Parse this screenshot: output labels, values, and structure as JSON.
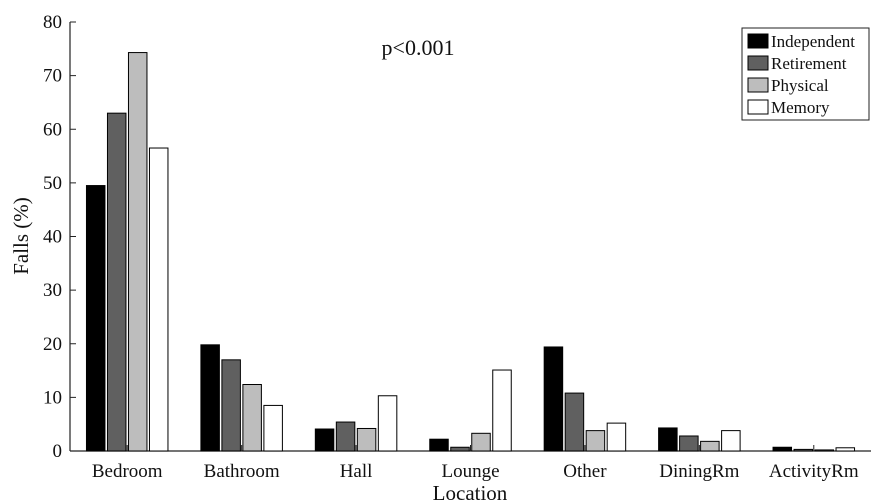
{
  "chart_data": {
    "type": "bar",
    "title": "",
    "xlabel": "Location",
    "ylabel": "Falls (%)",
    "annotation": "p<0.001",
    "ylim": [
      0,
      80
    ],
    "yticks": [
      0,
      10,
      20,
      30,
      40,
      50,
      60,
      70,
      80
    ],
    "grid": false,
    "legend_position": "top-right",
    "categories": [
      "Bedroom",
      "Bathroom",
      "Hall",
      "Lounge",
      "Other",
      "DiningRm",
      "ActivityRm"
    ],
    "series": [
      {
        "name": "Independent",
        "color": "#000000",
        "values": [
          49.5,
          19.8,
          4.1,
          2.2,
          19.4,
          4.3,
          0.7
        ]
      },
      {
        "name": "Retirement",
        "color": "#606060",
        "values": [
          63.0,
          17.0,
          5.4,
          0.7,
          10.8,
          2.8,
          0.3
        ]
      },
      {
        "name": "Physical",
        "color": "#bdbdbd",
        "values": [
          74.3,
          12.4,
          4.2,
          3.3,
          3.8,
          1.8,
          0.2
        ]
      },
      {
        "name": "Memory",
        "color": "#ffffff",
        "values": [
          56.5,
          8.5,
          10.3,
          15.1,
          5.2,
          3.8,
          0.6
        ]
      }
    ]
  }
}
